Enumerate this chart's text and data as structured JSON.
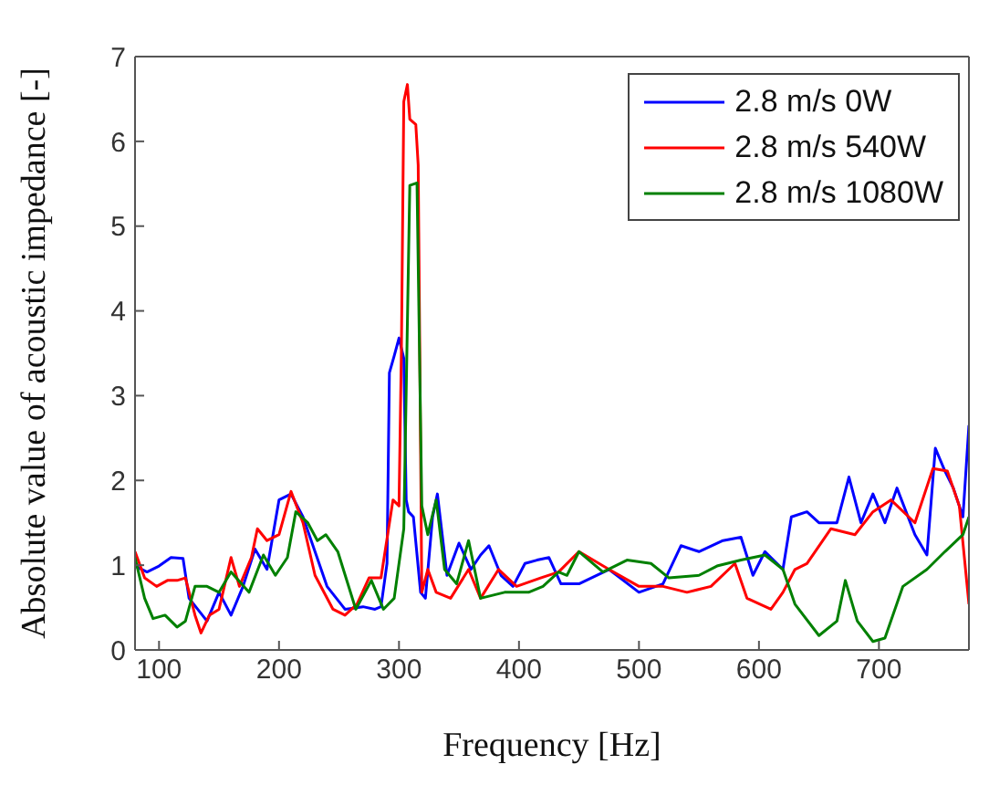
{
  "chart_data": {
    "type": "line",
    "xlabel": "Frequency [Hz]",
    "ylabel": "Absolute value of acoustic impedance [-]",
    "xlim": [
      80,
      775
    ],
    "ylim": [
      0,
      7
    ],
    "xticks": [
      100,
      200,
      300,
      400,
      500,
      600,
      700
    ],
    "yticks": [
      0,
      1,
      2,
      3,
      4,
      5,
      6,
      7
    ],
    "legend": "top right",
    "marker": "none",
    "line_style": "solid",
    "series": [
      {
        "name": "2.8 m/s 0W",
        "color": "#0000ff",
        "x": [
          80,
          90,
          100,
          110,
          120,
          125,
          140,
          150,
          160,
          170,
          180,
          190,
          200,
          210,
          220,
          230,
          240,
          255,
          270,
          280,
          285,
          290,
          292,
          296,
          300,
          304,
          306,
          308,
          312,
          318,
          322,
          328,
          332,
          340,
          350,
          360,
          368,
          375,
          385,
          395,
          405,
          415,
          425,
          435,
          450,
          475,
          500,
          520,
          535,
          550,
          570,
          585,
          595,
          605,
          620,
          627,
          640,
          650,
          665,
          675,
          685,
          695,
          705,
          715,
          730,
          740,
          747,
          755,
          762,
          770,
          775
        ],
        "values": [
          0.99,
          0.92,
          0.99,
          1.09,
          1.08,
          0.61,
          0.34,
          0.68,
          0.41,
          0.75,
          1.19,
          0.95,
          1.77,
          1.84,
          1.57,
          1.16,
          0.75,
          0.48,
          0.51,
          0.48,
          0.51,
          1.02,
          3.27,
          3.47,
          3.68,
          3.44,
          1.77,
          1.63,
          1.57,
          0.68,
          0.61,
          1.57,
          1.84,
          0.88,
          1.26,
          0.95,
          1.12,
          1.23,
          0.88,
          0.75,
          1.02,
          1.06,
          1.09,
          0.78,
          0.78,
          0.95,
          0.68,
          0.78,
          1.23,
          1.16,
          1.29,
          1.33,
          0.88,
          1.16,
          0.95,
          1.57,
          1.63,
          1.5,
          1.5,
          2.04,
          1.5,
          1.84,
          1.5,
          1.91,
          1.36,
          1.12,
          2.38,
          2.11,
          1.91,
          1.57,
          2.65
        ]
      },
      {
        "name": "2.8 m/s 540W",
        "color": "#ff0000",
        "x": [
          80,
          88,
          98,
          107,
          115,
          122,
          130,
          135,
          142,
          150,
          160,
          167,
          177,
          182,
          190,
          200,
          210,
          220,
          230,
          245,
          255,
          265,
          275,
          285,
          295,
          300,
          302,
          304,
          307,
          309,
          314,
          316,
          319,
          324,
          331,
          343,
          358,
          368,
          383,
          398,
          418,
          433,
          450,
          475,
          500,
          520,
          540,
          560,
          580,
          590,
          610,
          620,
          630,
          640,
          660,
          680,
          695,
          710,
          730,
          745,
          757,
          767,
          775
        ],
        "values": [
          1.16,
          0.85,
          0.75,
          0.82,
          0.82,
          0.85,
          0.41,
          0.2,
          0.41,
          0.48,
          1.09,
          0.75,
          1.09,
          1.43,
          1.29,
          1.36,
          1.87,
          1.5,
          0.88,
          0.48,
          0.41,
          0.54,
          0.85,
          0.85,
          1.77,
          1.7,
          3.54,
          6.47,
          6.67,
          6.26,
          6.2,
          5.72,
          0.68,
          0.95,
          0.68,
          0.61,
          0.95,
          0.61,
          0.95,
          0.75,
          0.85,
          0.92,
          1.16,
          0.95,
          0.75,
          0.75,
          0.68,
          0.75,
          1.02,
          0.61,
          0.48,
          0.68,
          0.95,
          1.02,
          1.43,
          1.36,
          1.63,
          1.77,
          1.5,
          2.14,
          2.11,
          1.7,
          0.54
        ]
      },
      {
        "name": "2.8 m/s 1080W",
        "color": "#008000",
        "x": [
          80,
          88,
          95,
          105,
          115,
          122,
          130,
          140,
          150,
          160,
          175,
          187,
          197,
          207,
          214,
          224,
          232,
          239,
          249,
          264,
          277,
          287,
          296,
          304,
          309,
          315,
          319,
          324,
          331,
          338,
          348,
          358,
          368,
          388,
          408,
          420,
          433,
          440,
          450,
          470,
          490,
          510,
          525,
          550,
          565,
          585,
          605,
          620,
          630,
          650,
          665,
          672,
          682,
          695,
          705,
          720,
          740,
          755,
          770,
          775
        ],
        "values": [
          1.09,
          0.61,
          0.37,
          0.41,
          0.27,
          0.34,
          0.75,
          0.75,
          0.68,
          0.92,
          0.68,
          1.12,
          0.88,
          1.09,
          1.63,
          1.5,
          1.29,
          1.36,
          1.16,
          0.48,
          0.82,
          0.48,
          0.61,
          1.43,
          5.48,
          5.51,
          1.7,
          1.36,
          1.77,
          0.95,
          0.78,
          1.29,
          0.61,
          0.68,
          0.68,
          0.75,
          0.92,
          0.88,
          1.16,
          0.92,
          1.06,
          1.02,
          0.85,
          0.88,
          0.99,
          1.06,
          1.12,
          0.95,
          0.54,
          0.17,
          0.34,
          0.82,
          0.34,
          0.1,
          0.14,
          0.75,
          0.95,
          1.16,
          1.36,
          1.57
        ]
      }
    ]
  }
}
